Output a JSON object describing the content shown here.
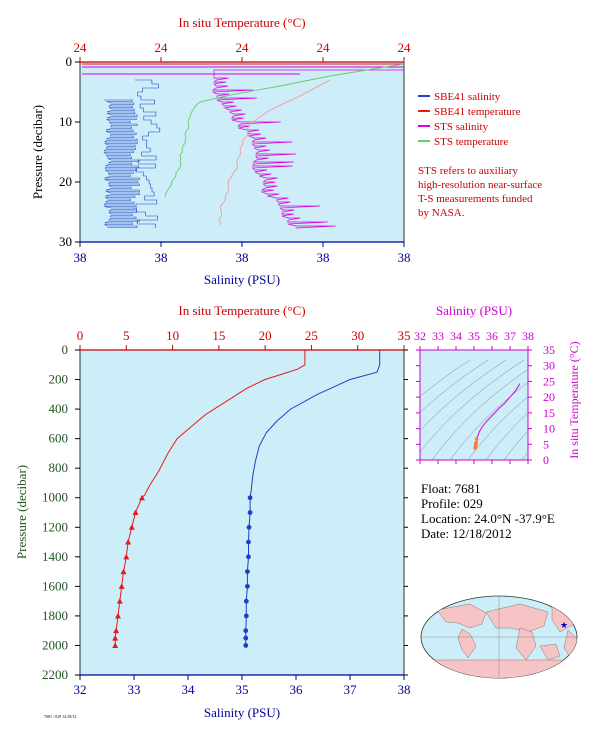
{
  "colors": {
    "plot_bg": "#cdeef8",
    "salinity": "#1f3fc8",
    "temperature": "#e41a1c",
    "sts_salinity": "#dd00dd",
    "sts_temperature": "#66cc66",
    "sts_temperature_light": "#f4a0a0",
    "red_axis": "#cc0000",
    "blue_axis": "#000099",
    "magenta_axis": "#cc00cc",
    "pressure_axis": "#225522"
  },
  "top_chart": {
    "top_axis_title": "In situ Temperature (°C)",
    "bottom_axis_title": "Salinity (PSU)",
    "y_axis_title": "Pressure (decibar)",
    "top_ticks": [
      "24",
      "24",
      "24",
      "24",
      "24"
    ],
    "bottom_ticks": [
      "38",
      "38",
      "38",
      "38",
      "38"
    ],
    "y_ticks": [
      "0",
      "10",
      "20",
      "30"
    ],
    "legend": [
      {
        "label": "SBE41 salinity",
        "color": "#1f3fc8"
      },
      {
        "label": "SBE41 temperature",
        "color": "#e41a1c"
      },
      {
        "label": "STS salinity",
        "color": "#dd00dd"
      },
      {
        "label": "STS temperature",
        "color": "#66cc66"
      }
    ],
    "note_lines": [
      "STS refers to auxiliary",
      "high-resolution near-surface",
      "T-S measurements funded",
      "by NASA."
    ]
  },
  "main_chart": {
    "top_axis_title": "In situ Temperature (°C)",
    "bottom_axis_title": "Salinity (PSU)",
    "y_axis_title": "Pressure (decibar)",
    "top_ticks": [
      "0",
      "5",
      "10",
      "15",
      "20",
      "25",
      "30",
      "35"
    ],
    "bottom_ticks": [
      "32",
      "33",
      "34",
      "35",
      "36",
      "37",
      "38"
    ],
    "y_ticks": [
      "0",
      "200",
      "400",
      "600",
      "800",
      "1000",
      "1200",
      "1400",
      "1600",
      "1800",
      "2000",
      "2200"
    ]
  },
  "ts_chart": {
    "top_axis_title": "Salinity (PSU)",
    "right_axis_title": "In situ Temperature (°C)",
    "top_ticks": [
      "32",
      "33",
      "34",
      "35",
      "36",
      "37",
      "38"
    ],
    "right_ticks": [
      "0",
      "5",
      "10",
      "15",
      "20",
      "25",
      "30",
      "35"
    ]
  },
  "float_info": {
    "float": "Float:  7681",
    "profile": "Profile:  029",
    "location": "Location:  24.0°N  -37.9°E",
    "date": "Date:  12/18/2012"
  },
  "footer_code": "7681 / 029  12/18/12",
  "chart_data": [
    {
      "type": "line",
      "title": "",
      "xlabel": "Salinity (PSU)",
      "x2label": "In situ Temperature (°C)",
      "ylabel": "Pressure (decibar)",
      "xlim": [
        32,
        38
      ],
      "x2lim": [
        0,
        35
      ],
      "ylim": [
        2200,
        0
      ],
      "series": [
        {
          "name": "salinity",
          "x": [
            37.55,
            37.55,
            37.5,
            37.3,
            37.0,
            36.7,
            36.4,
            36.15,
            35.9,
            35.65,
            35.45,
            35.32,
            35.25,
            35.2,
            35.17,
            35.15,
            35.15,
            35.13,
            35.12,
            35.12,
            35.1,
            35.1,
            35.08,
            35.08,
            35.07,
            35.07,
            35.07
          ],
          "y": [
            0,
            100,
            150,
            170,
            200,
            250,
            300,
            350,
            400,
            480,
            560,
            650,
            750,
            850,
            950,
            1000,
            1100,
            1200,
            1300,
            1400,
            1500,
            1600,
            1700,
            1800,
            1900,
            1950,
            2000
          ]
        },
        {
          "name": "temperature",
          "x": [
            24.3,
            24.3,
            23.5,
            22.0,
            20.0,
            18.0,
            16.5,
            15.0,
            13.5,
            12.0,
            10.5,
            9.5,
            8.5,
            7.5,
            7.0,
            6.7,
            6.0,
            5.6,
            5.2,
            5.0,
            4.7,
            4.5,
            4.3,
            4.1,
            3.9,
            3.8,
            3.8
          ],
          "y": [
            0,
            100,
            130,
            160,
            200,
            260,
            320,
            380,
            440,
            520,
            600,
            700,
            820,
            920,
            980,
            1000,
            1100,
            1200,
            1300,
            1400,
            1500,
            1600,
            1700,
            1800,
            1900,
            1950,
            2000
          ]
        }
      ]
    },
    {
      "type": "scatter",
      "title": "",
      "xlabel": "Salinity (PSU)",
      "ylabel": "In situ Temperature (°C)",
      "xlim": [
        32,
        38
      ],
      "ylim": [
        0,
        35
      ],
      "series": [
        {
          "name": "",
          "x": [
            37.55,
            37.3,
            37.0,
            36.7,
            36.4,
            36.15,
            35.9,
            35.65,
            35.45,
            35.3,
            35.2,
            35.15,
            35.12,
            35.1,
            35.08,
            35.07
          ],
          "y": [
            24.3,
            22.0,
            20.0,
            18.0,
            16.5,
            15.0,
            13.5,
            12.0,
            10.5,
            9.0,
            7.5,
            6.7,
            5.6,
            5.0,
            4.3,
            3.8
          ]
        }
      ]
    }
  ]
}
